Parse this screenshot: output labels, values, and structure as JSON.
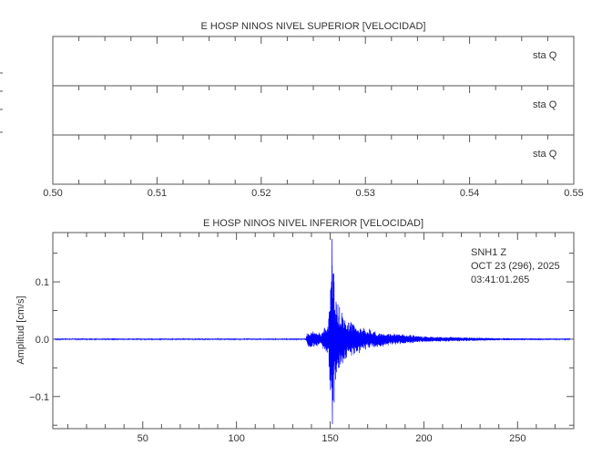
{
  "chart_data": [
    {
      "type": "line",
      "title": "E HOSP NINOS NIVEL SUPERIOR [VELOCIDAD]",
      "xlim": [
        0.5,
        0.55
      ],
      "x_ticks": [
        "0.50",
        "0.51",
        "0.52",
        "0.53",
        "0.54",
        "0.55"
      ],
      "traces": [
        {
          "label": "sta  Q",
          "values": []
        },
        {
          "label": "sta  Q",
          "values": []
        },
        {
          "label": "sta  Q",
          "values": []
        }
      ],
      "grid": false
    },
    {
      "type": "line",
      "title": "E HOSP NINOS NIVEL INFERIOR [VELOCIDAD]",
      "xlabel": "",
      "ylabel": "Amplitud  [cm/s]",
      "xlim": [
        2,
        280
      ],
      "ylim": [
        -0.156,
        0.186
      ],
      "x_ticks": [
        "50",
        "100",
        "150",
        "200",
        "250"
      ],
      "y_ticks": [
        "0.1",
        "0.0",
        "−0.1"
      ],
      "annotation": [
        "SNH1   Z",
        "OCT 23 (296), 2025",
        "03:41:01.265"
      ],
      "series_color": "#0000ff",
      "grid": false,
      "envelope": {
        "time_s": [
          2,
          137,
          138,
          145,
          149,
          150,
          151,
          152,
          153,
          155,
          158,
          165,
          175,
          185,
          200,
          215,
          240,
          280
        ],
        "amplitude_cm_s": [
          0.001,
          0.001,
          0.015,
          0.012,
          0.03,
          0.1,
          0.175,
          0.12,
          0.08,
          0.06,
          0.035,
          0.025,
          0.015,
          0.01,
          0.005,
          0.004,
          0.002,
          0.001
        ]
      },
      "peak": {
        "time_s": 151,
        "max": 0.175,
        "min": -0.148
      }
    }
  ]
}
